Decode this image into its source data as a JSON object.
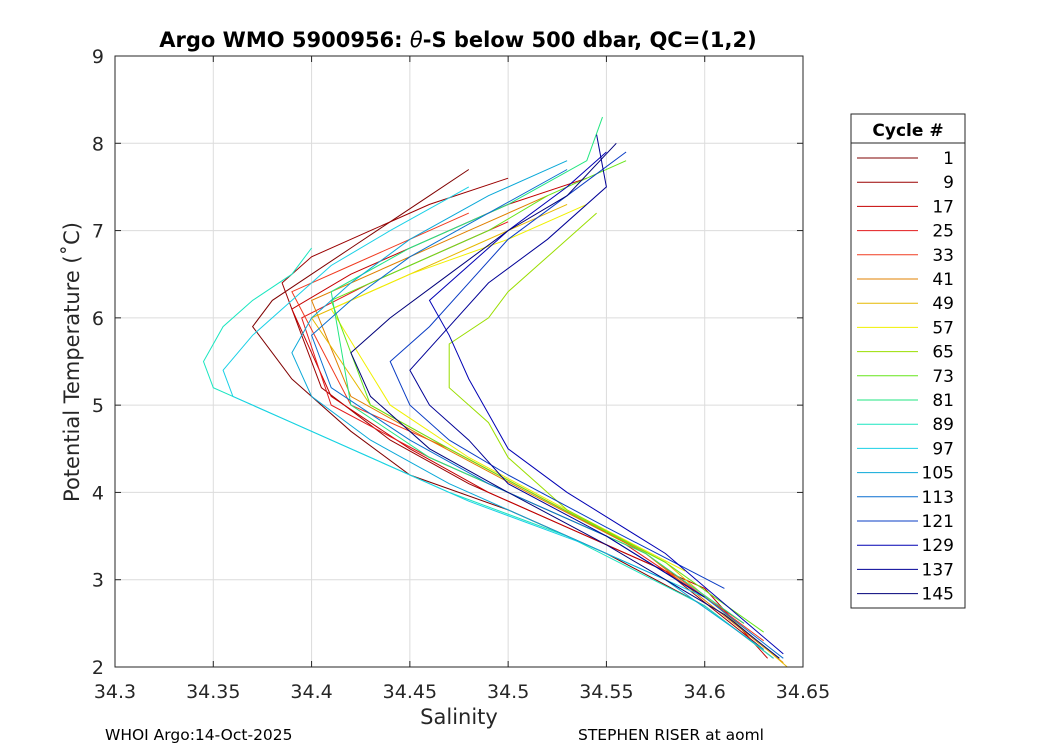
{
  "chart_data": {
    "type": "line",
    "title_prefix": "Argo WMO 5900956: ",
    "title_symbol": "θ",
    "title_suffix": "-S below 500 dbar,  QC=(1,2)",
    "xlabel": "Salinity",
    "ylabel": "Potential Temperature (˚C)",
    "xlim": [
      34.3,
      34.65
    ],
    "ylim": [
      2,
      9
    ],
    "xticks": [
      "34.3",
      "34.35",
      "34.4",
      "34.45",
      "34.5",
      "34.55",
      "34.6",
      "34.65"
    ],
    "yticks": [
      "2",
      "3",
      "4",
      "5",
      "6",
      "7",
      "8",
      "9"
    ],
    "grid": true,
    "legend": {
      "title": "Cycle #",
      "position": "right",
      "entries": [
        {
          "label": "1",
          "color": "#7f0000"
        },
        {
          "label": "9",
          "color": "#9a0000"
        },
        {
          "label": "17",
          "color": "#c40000"
        },
        {
          "label": "25",
          "color": "#e31a1c"
        },
        {
          "label": "33",
          "color": "#f03b20"
        },
        {
          "label": "41",
          "color": "#e08000"
        },
        {
          "label": "49",
          "color": "#e6b800"
        },
        {
          "label": "57",
          "color": "#f0f000"
        },
        {
          "label": "65",
          "color": "#9ade00"
        },
        {
          "label": "73",
          "color": "#66e61a"
        },
        {
          "label": "81",
          "color": "#22e680"
        },
        {
          "label": "89",
          "color": "#1ae6c0"
        },
        {
          "label": "97",
          "color": "#19d0e6"
        },
        {
          "label": "105",
          "color": "#0aa8d8"
        },
        {
          "label": "113",
          "color": "#0a6fd0"
        },
        {
          "label": "121",
          "color": "#0a3cc4"
        },
        {
          "label": "129",
          "color": "#0000b4"
        },
        {
          "label": "137",
          "color": "#000096"
        },
        {
          "label": "145",
          "color": "#00007a"
        }
      ]
    },
    "series": [
      {
        "name": "1",
        "color": "#7f0000",
        "points": [
          [
            34.37,
            5.9
          ],
          [
            34.38,
            6.2
          ],
          [
            34.4,
            6.5
          ],
          [
            34.42,
            6.8
          ],
          [
            34.44,
            7.1
          ],
          [
            34.46,
            7.4
          ],
          [
            34.48,
            7.7
          ]
        ],
        "deep": [
          [
            34.39,
            5.3
          ],
          [
            34.42,
            4.7
          ],
          [
            34.45,
            4.2
          ],
          [
            34.5,
            3.8
          ],
          [
            34.55,
            3.3
          ],
          [
            34.6,
            2.7
          ],
          [
            34.635,
            2.1
          ]
        ]
      },
      {
        "name": "9",
        "color": "#9a0000",
        "points": [
          [
            34.385,
            6.4
          ],
          [
            34.4,
            6.7
          ],
          [
            34.43,
            7.0
          ],
          [
            34.46,
            7.3
          ],
          [
            34.5,
            7.6
          ]
        ],
        "deep": [
          [
            34.405,
            5.2
          ],
          [
            34.44,
            4.6
          ],
          [
            34.48,
            4.1
          ],
          [
            34.53,
            3.6
          ],
          [
            34.58,
            3.1
          ],
          [
            34.63,
            2.2
          ]
        ]
      },
      {
        "name": "17",
        "color": "#c40000",
        "points": [
          [
            34.39,
            6.1
          ],
          [
            34.42,
            6.5
          ],
          [
            34.46,
            6.9
          ],
          [
            34.5,
            7.3
          ],
          [
            34.54,
            7.6
          ]
        ],
        "deep": [
          [
            34.41,
            5.1
          ],
          [
            34.45,
            4.5
          ],
          [
            34.49,
            4.0
          ],
          [
            34.54,
            3.5
          ],
          [
            34.6,
            2.9
          ],
          [
            34.632,
            2.1
          ]
        ]
      },
      {
        "name": "25",
        "color": "#e31a1c",
        "points": [
          [
            34.395,
            6.0
          ],
          [
            34.43,
            6.4
          ],
          [
            34.47,
            6.8
          ],
          [
            34.5,
            7.1
          ]
        ],
        "deep": [
          [
            34.41,
            5.0
          ],
          [
            34.46,
            4.4
          ],
          [
            34.5,
            4.0
          ],
          [
            34.56,
            3.4
          ],
          [
            34.62,
            2.5
          ]
        ]
      },
      {
        "name": "33",
        "color": "#f03b20",
        "points": [
          [
            34.39,
            6.3
          ],
          [
            34.42,
            6.6
          ],
          [
            34.45,
            6.9
          ],
          [
            34.48,
            7.2
          ]
        ],
        "deep": [
          [
            34.42,
            5.0
          ],
          [
            34.47,
            4.5
          ],
          [
            34.52,
            3.9
          ],
          [
            34.57,
            3.3
          ],
          [
            34.63,
            2.3
          ]
        ]
      },
      {
        "name": "41",
        "color": "#e08000",
        "points": [
          [
            34.4,
            6.2
          ],
          [
            34.44,
            6.6
          ],
          [
            34.48,
            7.0
          ],
          [
            34.52,
            7.4
          ]
        ],
        "deep": [
          [
            34.42,
            5.1
          ],
          [
            34.46,
            4.6
          ],
          [
            34.51,
            4.0
          ],
          [
            34.57,
            3.3
          ],
          [
            34.64,
            2.05
          ]
        ]
      },
      {
        "name": "49",
        "color": "#e6b800",
        "points": [
          [
            34.4,
            6.0
          ],
          [
            34.44,
            6.4
          ],
          [
            34.48,
            6.8
          ],
          [
            34.53,
            7.3
          ]
        ],
        "deep": [
          [
            34.43,
            5.0
          ],
          [
            34.47,
            4.5
          ],
          [
            34.52,
            3.9
          ],
          [
            34.58,
            3.2
          ],
          [
            34.642,
            2.0
          ]
        ]
      },
      {
        "name": "57",
        "color": "#f0f000",
        "points": [
          [
            34.41,
            6.1
          ],
          [
            34.45,
            6.5
          ],
          [
            34.5,
            6.9
          ],
          [
            34.54,
            7.3
          ]
        ],
        "deep": [
          [
            34.44,
            5.0
          ],
          [
            34.48,
            4.4
          ],
          [
            34.53,
            3.8
          ],
          [
            34.59,
            3.1
          ]
        ]
      },
      {
        "name": "65",
        "color": "#9ade00",
        "points": [
          [
            34.47,
            5.7
          ],
          [
            34.49,
            6.0
          ],
          [
            34.5,
            6.3
          ],
          [
            34.52,
            6.7
          ],
          [
            34.545,
            7.2
          ]
        ],
        "deep": [
          [
            34.47,
            5.2
          ],
          [
            34.49,
            4.8
          ],
          [
            34.5,
            4.4
          ],
          [
            34.53,
            3.8
          ],
          [
            34.58,
            3.2
          ]
        ]
      },
      {
        "name": "73",
        "color": "#66e61a",
        "points": [
          [
            34.41,
            6.2
          ],
          [
            34.45,
            6.6
          ],
          [
            34.49,
            7.0
          ],
          [
            34.52,
            7.4
          ],
          [
            34.56,
            7.8
          ]
        ],
        "deep": [
          [
            34.43,
            5.0
          ],
          [
            34.47,
            4.5
          ],
          [
            34.52,
            3.9
          ],
          [
            34.58,
            3.2
          ],
          [
            34.63,
            2.4
          ]
        ]
      },
      {
        "name": "81",
        "color": "#22e680",
        "points": [
          [
            34.41,
            6.3
          ],
          [
            34.45,
            6.8
          ],
          [
            34.5,
            7.3
          ],
          [
            34.54,
            7.8
          ],
          [
            34.548,
            8.3
          ]
        ],
        "deep": [
          [
            34.42,
            5.0
          ],
          [
            34.46,
            4.4
          ],
          [
            34.51,
            3.9
          ],
          [
            34.57,
            3.3
          ],
          [
            34.62,
            2.5
          ]
        ]
      },
      {
        "name": "89",
        "color": "#1ae6c0",
        "points": [
          [
            34.35,
            5.2
          ],
          [
            34.345,
            5.5
          ],
          [
            34.355,
            5.9
          ],
          [
            34.37,
            6.2
          ],
          [
            34.39,
            6.5
          ],
          [
            34.4,
            6.8
          ]
        ],
        "deep": [
          [
            34.38,
            4.9
          ],
          [
            34.42,
            4.5
          ],
          [
            34.47,
            4.0
          ],
          [
            34.53,
            3.5
          ],
          [
            34.6,
            2.7
          ],
          [
            34.635,
            2.1
          ]
        ]
      },
      {
        "name": "97",
        "color": "#19d0e6",
        "points": [
          [
            34.36,
            5.1
          ],
          [
            34.355,
            5.4
          ],
          [
            34.37,
            5.8
          ],
          [
            34.39,
            6.2
          ],
          [
            34.41,
            6.6
          ],
          [
            34.44,
            7.0
          ],
          [
            34.48,
            7.5
          ]
        ],
        "deep": [
          [
            34.39,
            4.8
          ],
          [
            34.43,
            4.4
          ],
          [
            34.48,
            3.9
          ],
          [
            34.54,
            3.4
          ],
          [
            34.6,
            2.8
          ]
        ]
      },
      {
        "name": "105",
        "color": "#0aa8d8",
        "points": [
          [
            34.39,
            5.6
          ],
          [
            34.4,
            6.0
          ],
          [
            34.42,
            6.4
          ],
          [
            34.45,
            6.9
          ],
          [
            34.49,
            7.4
          ],
          [
            34.53,
            7.8
          ]
        ],
        "deep": [
          [
            34.4,
            5.1
          ],
          [
            34.43,
            4.6
          ],
          [
            34.47,
            4.1
          ],
          [
            34.52,
            3.6
          ],
          [
            34.58,
            3.0
          ],
          [
            34.63,
            2.2
          ]
        ]
      },
      {
        "name": "113",
        "color": "#0a6fd0",
        "points": [
          [
            34.4,
            5.8
          ],
          [
            34.42,
            6.2
          ],
          [
            34.45,
            6.7
          ],
          [
            34.49,
            7.2
          ],
          [
            34.53,
            7.7
          ]
        ],
        "deep": [
          [
            34.41,
            5.2
          ],
          [
            34.45,
            4.6
          ],
          [
            34.49,
            4.1
          ],
          [
            34.55,
            3.5
          ],
          [
            34.6,
            2.8
          ],
          [
            34.64,
            2.1
          ]
        ]
      },
      {
        "name": "121",
        "color": "#0a3cc4",
        "points": [
          [
            34.44,
            5.5
          ],
          [
            34.46,
            5.9
          ],
          [
            34.48,
            6.4
          ],
          [
            34.5,
            6.9
          ],
          [
            34.53,
            7.4
          ],
          [
            34.56,
            7.9
          ]
        ],
        "deep": [
          [
            34.45,
            5.0
          ],
          [
            34.47,
            4.6
          ],
          [
            34.5,
            4.2
          ],
          [
            34.55,
            3.6
          ],
          [
            34.61,
            2.9
          ]
        ]
      },
      {
        "name": "129",
        "color": "#0000b4",
        "points": [
          [
            34.47,
            5.8
          ],
          [
            34.46,
            6.2
          ],
          [
            34.48,
            6.6
          ],
          [
            34.5,
            7.0
          ],
          [
            34.53,
            7.5
          ],
          [
            34.55,
            7.9
          ]
        ],
        "deep": [
          [
            34.48,
            5.3
          ],
          [
            34.49,
            4.9
          ],
          [
            34.5,
            4.5
          ],
          [
            34.53,
            4.0
          ],
          [
            34.58,
            3.3
          ],
          [
            34.64,
            2.15
          ]
        ]
      },
      {
        "name": "137",
        "color": "#000096",
        "points": [
          [
            34.45,
            5.4
          ],
          [
            34.47,
            5.9
          ],
          [
            34.49,
            6.4
          ],
          [
            34.52,
            6.9
          ],
          [
            34.55,
            7.5
          ],
          [
            34.545,
            8.1
          ]
        ],
        "deep": [
          [
            34.46,
            5.0
          ],
          [
            34.48,
            4.6
          ],
          [
            34.5,
            4.1
          ],
          [
            34.55,
            3.5
          ],
          [
            34.6,
            2.8
          ]
        ]
      },
      {
        "name": "145",
        "color": "#00007a",
        "points": [
          [
            34.42,
            5.6
          ],
          [
            34.44,
            6.0
          ],
          [
            34.47,
            6.5
          ],
          [
            34.5,
            7.0
          ],
          [
            34.53,
            7.4
          ],
          [
            34.555,
            8.0
          ]
        ],
        "deep": [
          [
            34.43,
            5.1
          ],
          [
            34.46,
            4.5
          ],
          [
            34.5,
            4.0
          ],
          [
            34.55,
            3.4
          ],
          [
            34.61,
            2.6
          ],
          [
            34.638,
            2.1
          ]
        ]
      }
    ]
  },
  "footer": {
    "left": "WHOI Argo:14-Oct-2025",
    "right": "STEPHEN RISER at aoml"
  }
}
